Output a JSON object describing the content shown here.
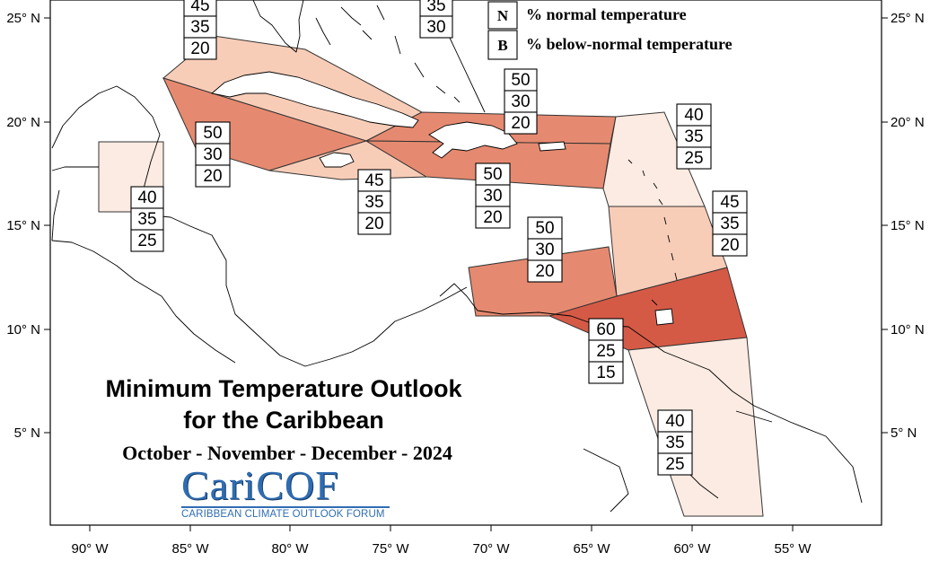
{
  "title": {
    "line1": "Minimum Temperature Outlook",
    "line2": "for the Caribbean",
    "season": "October - November - December - 2024"
  },
  "legend": [
    {
      "letter": "N",
      "text": "% normal temperature"
    },
    {
      "letter": "B",
      "text": "% below-normal temperature"
    }
  ],
  "logo": {
    "wordmark": "CariCOF",
    "subtitle": "CARIBBEAN CLIMATE OUTLOOK FORUM"
  },
  "axes": {
    "x_ticks": [
      "90° W",
      "85° W",
      "80° W",
      "75° W",
      "70° W",
      "65° W",
      "60° W",
      "55° W"
    ],
    "y_ticks": [
      "25° N",
      "20° N",
      "15° N",
      "10° N",
      "5° N"
    ]
  },
  "colors": {
    "lightest": "#fcebe2",
    "light": "#f8cdb8",
    "medium": "#ec9a80",
    "dark": "#e58a70",
    "darkest": "#d55a46"
  },
  "zones": [
    {
      "id": "bahamas-north",
      "probabilities": [
        45,
        35,
        20
      ]
    },
    {
      "id": "bahamas-east",
      "probabilities": [
        35,
        30
      ]
    },
    {
      "id": "greater-antilles-east",
      "probabilities": [
        50,
        30,
        20
      ]
    },
    {
      "id": "cuba-west",
      "probabilities": [
        50,
        30,
        20
      ]
    },
    {
      "id": "leeward-islands",
      "probabilities": [
        40,
        35,
        25
      ]
    },
    {
      "id": "belize",
      "probabilities": [
        40,
        35,
        25
      ]
    },
    {
      "id": "jamaica",
      "probabilities": [
        45,
        35,
        20
      ]
    },
    {
      "id": "hispaniola-south",
      "probabilities": [
        50,
        30,
        20
      ]
    },
    {
      "id": "windward-islands",
      "probabilities": [
        45,
        35,
        20
      ]
    },
    {
      "id": "abc-islands",
      "probabilities": [
        50,
        30,
        20
      ]
    },
    {
      "id": "trinidad-tobago",
      "probabilities": [
        60,
        25,
        15
      ]
    },
    {
      "id": "guianas",
      "probabilities": [
        40,
        35,
        25
      ]
    }
  ]
}
